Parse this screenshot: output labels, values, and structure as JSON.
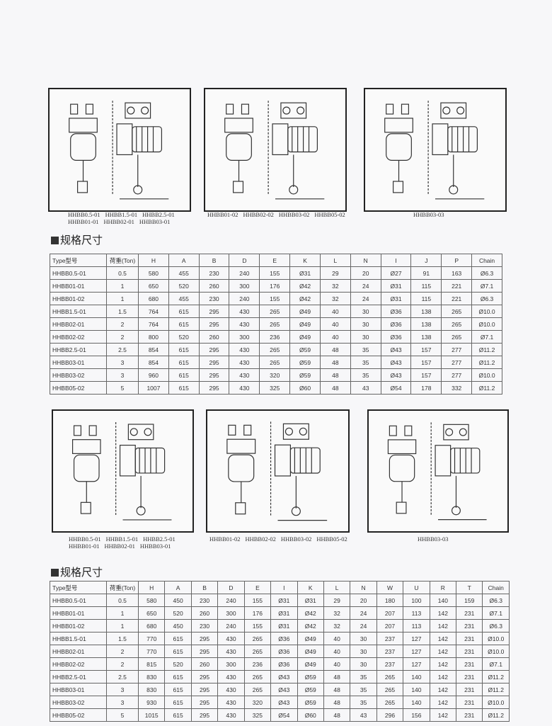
{
  "sections": [
    {
      "figure_captions": [
        [
          "HHBB0.5-01",
          "HHBB1.5-01",
          "HHBB2.5-01"
        ],
        [
          "HHBB01-01",
          "HHBB02-01",
          "HHBB03-01"
        ],
        [
          "HHBB01-02",
          "HHBB02-02",
          "HHBB03-02",
          "HHBB05-02"
        ],
        [
          "HHBB03-03"
        ]
      ],
      "heading": "规格尺寸",
      "table": {
        "headers": [
          "Type型号",
          "荷重(Ton)",
          "H",
          "A",
          "B",
          "D",
          "E",
          "K",
          "L",
          "N",
          "I",
          "J",
          "P",
          "Chain"
        ],
        "rows": [
          [
            "HHBB0.5-01",
            "0.5",
            "580",
            "455",
            "230",
            "240",
            "155",
            "Ø31",
            "29",
            "20",
            "Ø27",
            "91",
            "163",
            "Ø6.3"
          ],
          [
            "HHBB01-01",
            "1",
            "650",
            "520",
            "260",
            "300",
            "176",
            "Ø42",
            "32",
            "24",
            "Ø31",
            "115",
            "221",
            "Ø7.1"
          ],
          [
            "HHBB01-02",
            "1",
            "680",
            "455",
            "230",
            "240",
            "155",
            "Ø42",
            "32",
            "24",
            "Ø31",
            "115",
            "221",
            "Ø6.3"
          ],
          [
            "HHBB1.5-01",
            "1.5",
            "764",
            "615",
            "295",
            "430",
            "265",
            "Ø49",
            "40",
            "30",
            "Ø36",
            "138",
            "265",
            "Ø10.0"
          ],
          [
            "HHBB02-01",
            "2",
            "764",
            "615",
            "295",
            "430",
            "265",
            "Ø49",
            "40",
            "30",
            "Ø36",
            "138",
            "265",
            "Ø10.0"
          ],
          [
            "HHBB02-02",
            "2",
            "800",
            "520",
            "260",
            "300",
            "236",
            "Ø49",
            "40",
            "30",
            "Ø36",
            "138",
            "265",
            "Ø7.1"
          ],
          [
            "HHBB2.5-01",
            "2.5",
            "854",
            "615",
            "295",
            "430",
            "265",
            "Ø59",
            "48",
            "35",
            "Ø43",
            "157",
            "277",
            "Ø11.2"
          ],
          [
            "HHBB03-01",
            "3",
            "854",
            "615",
            "295",
            "430",
            "265",
            "Ø59",
            "48",
            "35",
            "Ø43",
            "157",
            "277",
            "Ø11.2"
          ],
          [
            "HHBB03-02",
            "3",
            "960",
            "615",
            "295",
            "430",
            "320",
            "Ø59",
            "48",
            "35",
            "Ø43",
            "157",
            "277",
            "Ø10.0"
          ],
          [
            "HHBB05-02",
            "5",
            "1007",
            "615",
            "295",
            "430",
            "325",
            "Ø60",
            "48",
            "43",
            "Ø54",
            "178",
            "332",
            "Ø11.2"
          ]
        ]
      }
    },
    {
      "figure_captions": [
        [
          "HHBB0.5-01",
          "HHBB1.5-01",
          "HHBB2.5-01"
        ],
        [
          "HHBB01-01",
          "HHBB02-01",
          "HHBB03-01"
        ],
        [
          "HHBB01-02",
          "HHBB02-02",
          "HHBB03-02",
          "HHBB05-02"
        ],
        [
          "HHBB03-03"
        ]
      ],
      "heading": "规格尺寸",
      "table": {
        "headers": [
          "Type型号",
          "荷重(Ton)",
          "H",
          "A",
          "B",
          "D",
          "E",
          "I",
          "K",
          "L",
          "N",
          "W",
          "U",
          "R",
          "T",
          "Chain"
        ],
        "rows": [
          [
            "HHBB0.5-01",
            "0.5",
            "580",
            "450",
            "230",
            "240",
            "155",
            "Ø31",
            "Ø31",
            "29",
            "20",
            "180",
            "100",
            "140",
            "159",
            "Ø6.3"
          ],
          [
            "HHBB01-01",
            "1",
            "650",
            "520",
            "260",
            "300",
            "176",
            "Ø31",
            "Ø42",
            "32",
            "24",
            "207",
            "113",
            "142",
            "231",
            "Ø7.1"
          ],
          [
            "HHBB01-02",
            "1",
            "680",
            "450",
            "230",
            "240",
            "155",
            "Ø31",
            "Ø42",
            "32",
            "24",
            "207",
            "113",
            "142",
            "231",
            "Ø6.3"
          ],
          [
            "HHBB1.5-01",
            "1.5",
            "770",
            "615",
            "295",
            "430",
            "265",
            "Ø36",
            "Ø49",
            "40",
            "30",
            "237",
            "127",
            "142",
            "231",
            "Ø10.0"
          ],
          [
            "HHBB02-01",
            "2",
            "770",
            "615",
            "295",
            "430",
            "265",
            "Ø36",
            "Ø49",
            "40",
            "30",
            "237",
            "127",
            "142",
            "231",
            "Ø10.0"
          ],
          [
            "HHBB02-02",
            "2",
            "815",
            "520",
            "260",
            "300",
            "236",
            "Ø36",
            "Ø49",
            "40",
            "30",
            "237",
            "127",
            "142",
            "231",
            "Ø7.1"
          ],
          [
            "HHBB2.5-01",
            "2.5",
            "830",
            "615",
            "295",
            "430",
            "265",
            "Ø43",
            "Ø59",
            "48",
            "35",
            "265",
            "140",
            "142",
            "231",
            "Ø11.2"
          ],
          [
            "HHBB03-01",
            "3",
            "830",
            "615",
            "295",
            "430",
            "265",
            "Ø43",
            "Ø59",
            "48",
            "35",
            "265",
            "140",
            "142",
            "231",
            "Ø11.2"
          ],
          [
            "HHBB03-02",
            "3",
            "930",
            "615",
            "295",
            "430",
            "320",
            "Ø43",
            "Ø59",
            "48",
            "35",
            "265",
            "140",
            "142",
            "231",
            "Ø10.0"
          ],
          [
            "HHBB05-02",
            "5",
            "1015",
            "615",
            "295",
            "430",
            "325",
            "Ø54",
            "Ø60",
            "48",
            "43",
            "296",
            "156",
            "142",
            "231",
            "Ø11.2"
          ]
        ]
      }
    }
  ]
}
